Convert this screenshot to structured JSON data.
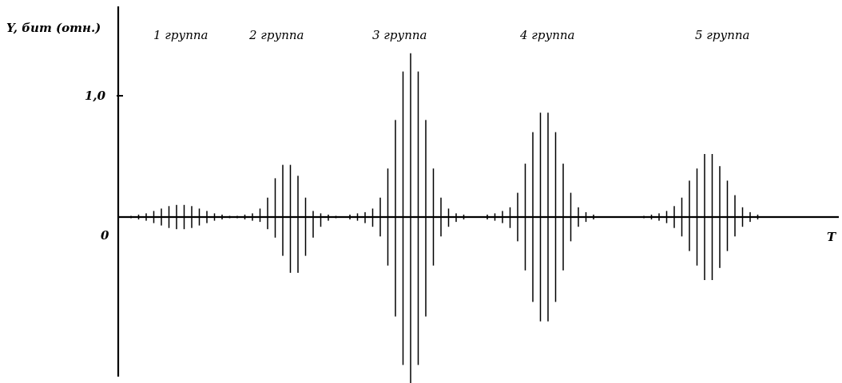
{
  "chart_data": {
    "type": "bar",
    "title": "",
    "ylabel": "Y, бит (отн.)",
    "xlabel": "T",
    "y_ticks": [
      {
        "value": 0,
        "label": "0"
      },
      {
        "value": 1.0,
        "label": "1,0"
      }
    ],
    "ylim": [
      -1.3,
      1.35
    ],
    "grid": false,
    "groups": [
      {
        "label": "1 группа",
        "up": [
          0.01,
          0.02,
          0.03,
          0.05,
          0.07,
          0.09,
          0.1,
          0.1,
          0.09,
          0.07,
          0.05,
          0.03,
          0.02,
          0.01
        ],
        "down": [
          0.01,
          0.02,
          0.03,
          0.05,
          0.07,
          0.09,
          0.1,
          0.1,
          0.09,
          0.07,
          0.05,
          0.03,
          0.02,
          0.01
        ]
      },
      {
        "label": "2 группа",
        "up": [
          0.01,
          0.02,
          0.03,
          0.07,
          0.16,
          0.32,
          0.43,
          0.43,
          0.34,
          0.16,
          0.05,
          0.03,
          0.02,
          0.01
        ],
        "down": [
          0.01,
          0.02,
          0.03,
          0.04,
          0.1,
          0.17,
          0.32,
          0.46,
          0.46,
          0.32,
          0.17,
          0.08,
          0.03,
          0.01
        ]
      },
      {
        "label": "3 группа",
        "up": [
          0.02,
          0.03,
          0.04,
          0.07,
          0.16,
          0.4,
          0.8,
          1.2,
          1.35,
          1.2,
          0.8,
          0.4,
          0.16,
          0.07,
          0.03,
          0.02
        ],
        "down": [
          0.02,
          0.03,
          0.05,
          0.08,
          0.16,
          0.4,
          0.82,
          1.22,
          1.38,
          1.22,
          0.82,
          0.4,
          0.16,
          0.08,
          0.04,
          0.02
        ]
      },
      {
        "label": "4 группа",
        "up": [
          0.02,
          0.03,
          0.05,
          0.08,
          0.2,
          0.44,
          0.7,
          0.86,
          0.86,
          0.7,
          0.44,
          0.2,
          0.08,
          0.04,
          0.02
        ],
        "down": [
          0.02,
          0.03,
          0.05,
          0.09,
          0.2,
          0.44,
          0.7,
          0.86,
          0.86,
          0.7,
          0.44,
          0.2,
          0.08,
          0.04,
          0.02
        ]
      },
      {
        "label": "5 группа",
        "up": [
          0.01,
          0.02,
          0.03,
          0.05,
          0.09,
          0.16,
          0.3,
          0.4,
          0.52,
          0.52,
          0.42,
          0.3,
          0.18,
          0.08,
          0.04,
          0.02
        ],
        "down": [
          0.01,
          0.02,
          0.03,
          0.05,
          0.09,
          0.16,
          0.28,
          0.4,
          0.52,
          0.52,
          0.42,
          0.28,
          0.16,
          0.08,
          0.04,
          0.02
        ]
      }
    ]
  }
}
